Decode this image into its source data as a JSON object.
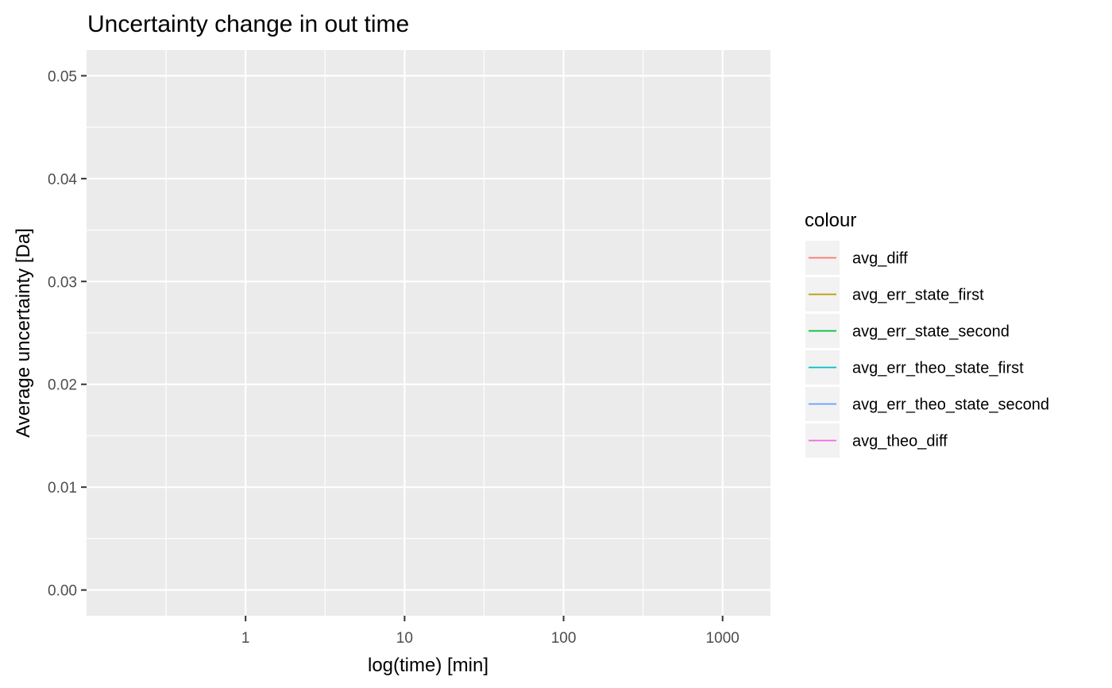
{
  "chart_data": {
    "type": "line",
    "title": "Uncertainty change in out time",
    "xlabel": "log(time) [min]",
    "ylabel": "Average uncertainty [Da]",
    "x_scale": "log10",
    "xlim": [
      0.1,
      2000
    ],
    "ylim": [
      -0.0025,
      0.0525
    ],
    "x_ticks": [
      1,
      10,
      100,
      1000
    ],
    "x_tick_labels": [
      "1",
      "10",
      "100",
      "1000"
    ],
    "y_ticks": [
      0,
      0.01,
      0.02,
      0.03,
      0.04,
      0.05
    ],
    "y_tick_labels": [
      "0.00",
      "0.01",
      "0.02",
      "0.03",
      "0.04",
      "0.05"
    ],
    "grid": true,
    "legend": {
      "title": "colour",
      "placement": "right"
    },
    "series": [
      {
        "name": "avg_diff",
        "color": "#F8766D",
        "points": []
      },
      {
        "name": "avg_err_state_first",
        "color": "#B79F00",
        "points": []
      },
      {
        "name": "avg_err_state_second",
        "color": "#00BA38",
        "points": []
      },
      {
        "name": "avg_err_theo_state_first",
        "color": "#00BFC4",
        "points": []
      },
      {
        "name": "avg_err_theo_state_second",
        "color": "#619CFF",
        "points": []
      },
      {
        "name": "avg_theo_diff",
        "color": "#F564E3",
        "points": []
      }
    ]
  }
}
